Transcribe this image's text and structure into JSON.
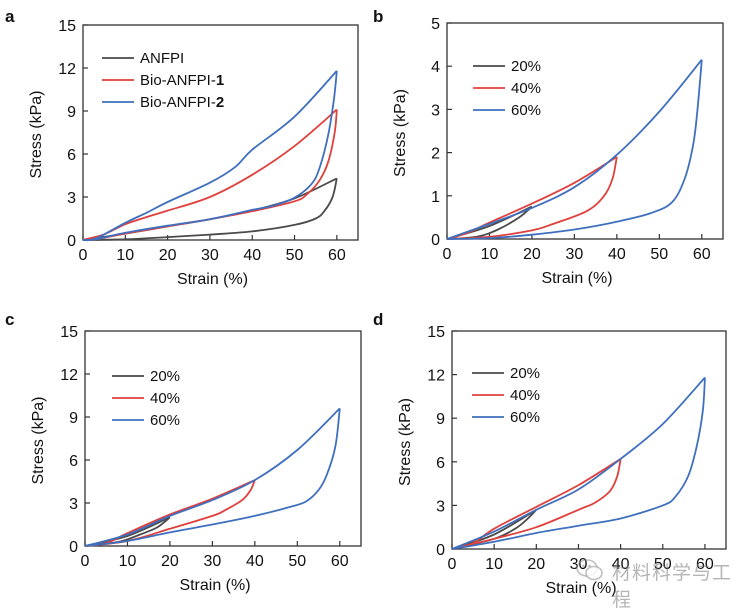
{
  "chart_data": [
    {
      "panel": "a",
      "type": "line",
      "title": "",
      "xlabel": "Strain (%)",
      "ylabel": "Stress (kPa)",
      "xlim": [
        0,
        65
      ],
      "ylim": [
        0,
        15
      ],
      "xticks": [
        0,
        10,
        20,
        30,
        40,
        50,
        60
      ],
      "yticks": [
        0,
        3,
        6,
        9,
        12,
        15
      ],
      "legend_position": "top-left",
      "series": [
        {
          "name": "ANFPI",
          "name_plain": "ANFPI",
          "name_bold": "",
          "color": "#4a4a4a",
          "loading": [
            [
              0,
              0
            ],
            [
              10,
              0.45
            ],
            [
              20,
              0.95
            ],
            [
              30,
              1.45
            ],
            [
              40,
              2.05
            ],
            [
              50,
              2.9
            ],
            [
              60,
              4.3
            ]
          ],
          "unloading": [
            [
              60,
              4.3
            ],
            [
              59,
              3.0
            ],
            [
              57,
              2.0
            ],
            [
              55,
              1.5
            ],
            [
              50,
              1.05
            ],
            [
              40,
              0.6
            ],
            [
              30,
              0.38
            ],
            [
              20,
              0.2
            ],
            [
              10,
              0.05
            ],
            [
              0,
              0
            ]
          ]
        },
        {
          "name": "Bio-ANFPI-1",
          "name_plain": "Bio-ANFPI-",
          "name_bold": "1",
          "color": "#e0403c",
          "loading": [
            [
              0,
              0
            ],
            [
              5,
              0.4
            ],
            [
              10,
              1.1
            ],
            [
              15,
              1.6
            ],
            [
              20,
              2.05
            ],
            [
              30,
              3.0
            ],
            [
              40,
              4.55
            ],
            [
              50,
              6.55
            ],
            [
              60,
              9.1
            ]
          ],
          "unloading": [
            [
              60,
              9.1
            ],
            [
              59.5,
              7.5
            ],
            [
              58,
              5.5
            ],
            [
              56,
              4.2
            ],
            [
              53,
              3.2
            ],
            [
              50,
              2.7
            ],
            [
              40,
              2.0
            ],
            [
              30,
              1.45
            ],
            [
              20,
              0.95
            ],
            [
              10,
              0.45
            ],
            [
              3,
              0.05
            ],
            [
              0,
              0
            ]
          ]
        },
        {
          "name": "Bio-ANFPI-2",
          "name_plain": "Bio-ANFPI-",
          "name_bold": "2",
          "color": "#3f6fbf",
          "loading": [
            [
              0,
              0
            ],
            [
              3,
              0.1
            ],
            [
              10,
              1.2
            ],
            [
              15,
              1.9
            ],
            [
              20,
              2.65
            ],
            [
              30,
              4.0
            ],
            [
              36,
              5.1
            ],
            [
              40,
              6.3
            ],
            [
              50,
              8.6
            ],
            [
              60,
              11.8
            ]
          ],
          "unloading": [
            [
              60,
              11.8
            ],
            [
              59.3,
              9.8
            ],
            [
              58,
              7.4
            ],
            [
              56,
              5.1
            ],
            [
              54,
              3.9
            ],
            [
              50,
              2.95
            ],
            [
              45,
              2.4
            ],
            [
              40,
              2.1
            ],
            [
              30,
              1.45
            ],
            [
              20,
              1.0
            ],
            [
              10,
              0.5
            ],
            [
              3,
              0.05
            ],
            [
              0,
              0
            ]
          ]
        }
      ]
    },
    {
      "panel": "b",
      "type": "line",
      "title": "",
      "xlabel": "Strain (%)",
      "ylabel": "Stress (kPa)",
      "xlim": [
        0,
        65
      ],
      "ylim": [
        0,
        5
      ],
      "xticks": [
        0,
        10,
        20,
        30,
        40,
        50,
        60
      ],
      "yticks": [
        0,
        1,
        2,
        3,
        4,
        5
      ],
      "legend_position": "top-left",
      "series": [
        {
          "name": "20%",
          "name_plain": "20%",
          "name_bold": "",
          "color": "#4a4a4a",
          "loading": [
            [
              0,
              0
            ],
            [
              10,
              0.3
            ],
            [
              20,
              0.75
            ]
          ],
          "unloading": [
            [
              20,
              0.75
            ],
            [
              17,
              0.5
            ],
            [
              12,
              0.22
            ],
            [
              7,
              0.05
            ],
            [
              0,
              0
            ]
          ]
        },
        {
          "name": "40%",
          "name_plain": "40%",
          "name_bold": "",
          "color": "#e0403c",
          "loading": [
            [
              0,
              0
            ],
            [
              5,
              0.15
            ],
            [
              10,
              0.38
            ],
            [
              20,
              0.82
            ],
            [
              30,
              1.3
            ],
            [
              40,
              1.9
            ]
          ],
          "unloading": [
            [
              40,
              1.9
            ],
            [
              39,
              1.4
            ],
            [
              37,
              1.0
            ],
            [
              33,
              0.65
            ],
            [
              25,
              0.35
            ],
            [
              20,
              0.2
            ],
            [
              10,
              0.05
            ],
            [
              0,
              0
            ]
          ]
        },
        {
          "name": "60%",
          "name_plain": "60%",
          "name_bold": "",
          "color": "#3f6fbf",
          "loading": [
            [
              0,
              0
            ],
            [
              10,
              0.35
            ],
            [
              20,
              0.72
            ],
            [
              30,
              1.2
            ],
            [
              40,
              1.95
            ],
            [
              50,
              2.95
            ],
            [
              60,
              4.15
            ]
          ],
          "unloading": [
            [
              60,
              4.15
            ],
            [
              59,
              3.0
            ],
            [
              58,
              2.2
            ],
            [
              56,
              1.4
            ],
            [
              53,
              0.85
            ],
            [
              48,
              0.6
            ],
            [
              40,
              0.4
            ],
            [
              30,
              0.22
            ],
            [
              20,
              0.1
            ],
            [
              10,
              0.02
            ],
            [
              0,
              0
            ]
          ]
        }
      ]
    },
    {
      "panel": "c",
      "type": "line",
      "title": "",
      "xlabel": "Strain (%)",
      "ylabel": "Stress (kPa)",
      "xlim": [
        0,
        65
      ],
      "ylim": [
        0,
        15
      ],
      "xticks": [
        0,
        10,
        20,
        30,
        40,
        50,
        60
      ],
      "yticks": [
        0,
        3,
        6,
        9,
        12,
        15
      ],
      "legend_position": "top-left",
      "series": [
        {
          "name": "20%",
          "name_plain": "20%",
          "name_bold": "",
          "color": "#4a4a4a",
          "loading": [
            [
              0,
              0
            ],
            [
              10,
              0.7
            ],
            [
              20,
              2.0
            ]
          ],
          "unloading": [
            [
              20,
              2.0
            ],
            [
              17,
              1.3
            ],
            [
              13,
              0.8
            ],
            [
              8,
              0.3
            ],
            [
              0,
              0
            ]
          ]
        },
        {
          "name": "40%",
          "name_plain": "40%",
          "name_bold": "",
          "color": "#e0403c",
          "loading": [
            [
              0,
              0
            ],
            [
              5,
              0.2
            ],
            [
              10,
              0.9
            ],
            [
              20,
              2.2
            ],
            [
              30,
              3.3
            ],
            [
              40,
              4.6
            ]
          ],
          "unloading": [
            [
              40,
              4.6
            ],
            [
              39,
              3.9
            ],
            [
              37,
              3.2
            ],
            [
              33,
              2.5
            ],
            [
              30,
              2.1
            ],
            [
              20,
              1.2
            ],
            [
              10,
              0.35
            ],
            [
              0,
              0
            ]
          ]
        },
        {
          "name": "60%",
          "name_plain": "60%",
          "name_bold": "",
          "color": "#3f6fbf",
          "loading": [
            [
              0,
              0
            ],
            [
              10,
              0.8
            ],
            [
              20,
              2.1
            ],
            [
              30,
              3.2
            ],
            [
              40,
              4.6
            ],
            [
              50,
              6.7
            ],
            [
              60,
              9.6
            ]
          ],
          "unloading": [
            [
              60,
              9.6
            ],
            [
              59,
              7.0
            ],
            [
              57,
              5.0
            ],
            [
              55,
              3.9
            ],
            [
              52,
              3.1
            ],
            [
              48,
              2.7
            ],
            [
              40,
              2.1
            ],
            [
              30,
              1.5
            ],
            [
              20,
              0.95
            ],
            [
              10,
              0.35
            ],
            [
              0,
              0
            ]
          ]
        }
      ]
    },
    {
      "panel": "d",
      "type": "line",
      "title": "",
      "xlabel": "Strain (%)",
      "ylabel": "Stress (kPa)",
      "xlim": [
        0,
        65
      ],
      "ylim": [
        0,
        15
      ],
      "xticks": [
        0,
        10,
        20,
        30,
        40,
        50,
        60
      ],
      "yticks": [
        0,
        3,
        6,
        9,
        12,
        15
      ],
      "legend_position": "top-left",
      "series": [
        {
          "name": "20%",
          "name_plain": "20%",
          "name_bold": "",
          "color": "#4a4a4a",
          "loading": [
            [
              0,
              0
            ],
            [
              10,
              1.0
            ],
            [
              20,
              2.7
            ]
          ],
          "unloading": [
            [
              20,
              2.7
            ],
            [
              18,
              2.1
            ],
            [
              15,
              1.4
            ],
            [
              10,
              0.7
            ],
            [
              0,
              0
            ]
          ]
        },
        {
          "name": "40%",
          "name_plain": "40%",
          "name_bold": "",
          "color": "#e0403c",
          "loading": [
            [
              0,
              0
            ],
            [
              5,
              0.4
            ],
            [
              10,
              1.4
            ],
            [
              20,
              2.9
            ],
            [
              30,
              4.4
            ],
            [
              40,
              6.2
            ]
          ],
          "unloading": [
            [
              40,
              6.2
            ],
            [
              39.2,
              5.0
            ],
            [
              37.5,
              4.0
            ],
            [
              34,
              3.2
            ],
            [
              30,
              2.7
            ],
            [
              20,
              1.5
            ],
            [
              10,
              0.7
            ],
            [
              0,
              0
            ]
          ]
        },
        {
          "name": "60%",
          "name_plain": "60%",
          "name_bold": "",
          "color": "#3f6fbf",
          "loading": [
            [
              0,
              0
            ],
            [
              10,
              1.2
            ],
            [
              20,
              2.7
            ],
            [
              30,
              4.1
            ],
            [
              40,
              6.2
            ],
            [
              50,
              8.6
            ],
            [
              60,
              11.8
            ]
          ],
          "unloading": [
            [
              60,
              11.8
            ],
            [
              59.5,
              9.5
            ],
            [
              58,
              7.0
            ],
            [
              56,
              5.0
            ],
            [
              53,
              3.6
            ],
            [
              50,
              3.0
            ],
            [
              40,
              2.1
            ],
            [
              30,
              1.6
            ],
            [
              20,
              1.1
            ],
            [
              10,
              0.5
            ],
            [
              0,
              0
            ]
          ]
        }
      ]
    }
  ],
  "watermark": {
    "text": "材料科学与工程",
    "icon": "wechat-icon"
  }
}
